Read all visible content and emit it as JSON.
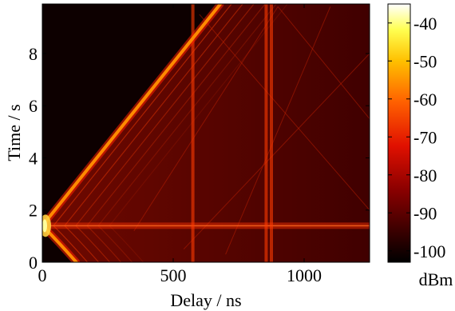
{
  "chart_data": {
    "type": "heatmap",
    "title": "",
    "xlabel": "Delay / ns",
    "ylabel": "Time / s",
    "xlim": [
      0,
      1250
    ],
    "ylim": [
      0,
      9.9
    ],
    "x_ticks": [
      0,
      500,
      1000
    ],
    "y_ticks": [
      0,
      2,
      4,
      6,
      8
    ],
    "colorbar": {
      "label": "dBm",
      "range": [
        -103,
        -35
      ],
      "ticks": [
        -40,
        -50,
        -60,
        -70,
        -80,
        -90,
        -100
      ],
      "colormap": "hot"
    },
    "features": {
      "direct_path_min_delay_ns": 0,
      "direct_path_min_time_s": 1.4,
      "direct_path_at_t0_ns": 130,
      "direct_path_at_tmax_ns": 680,
      "constant_delay_lines_ns": [
        575,
        855,
        875
      ],
      "constant_time_line_s": 1.4
    }
  },
  "colors": {
    "background": "#ffffff",
    "noise_floor": "#0d0000",
    "colormap_stops": [
      "#000000",
      "#3a0000",
      "#8a0000",
      "#e01000",
      "#ff6000",
      "#ffc000",
      "#ffff50",
      "#ffffff"
    ]
  }
}
